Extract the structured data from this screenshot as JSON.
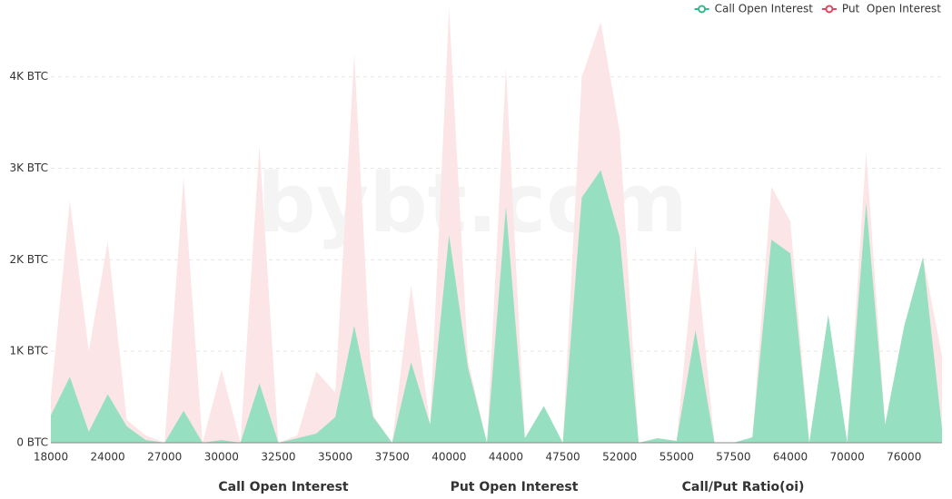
{
  "chart_data": {
    "type": "area",
    "categories": [
      18000,
      null,
      null,
      24000,
      null,
      null,
      27000,
      null,
      null,
      30000,
      null,
      null,
      32500,
      null,
      null,
      35000,
      null,
      null,
      37500,
      null,
      null,
      40000,
      null,
      null,
      44000,
      null,
      null,
      47500,
      null,
      null,
      52000,
      null,
      null,
      55000,
      null,
      null,
      57500,
      null,
      null,
      64000,
      null,
      null,
      70000,
      null,
      null,
      76000,
      null,
      null
    ],
    "series": [
      {
        "name": "Put  Open Interest",
        "color": "#fce5e6",
        "legend_color": "#e2455f",
        "values": [
          500,
          2650,
          1000,
          2200,
          250,
          80,
          0,
          2900,
          0,
          800,
          0,
          3250,
          0,
          80,
          780,
          550,
          4250,
          300,
          0,
          1720,
          200,
          4750,
          900,
          0,
          4100,
          50,
          400,
          0,
          4000,
          4600,
          3400,
          0,
          50,
          20,
          2150,
          0,
          0,
          60,
          2800,
          2420,
          0,
          1400,
          0,
          3180,
          200,
          1270,
          2030,
          950
        ]
      },
      {
        "name": "Call Open Interest",
        "color": "#96dfc0",
        "legend_color": "#35b98a",
        "values": [
          300,
          720,
          120,
          530,
          180,
          30,
          0,
          350,
          0,
          30,
          0,
          650,
          0,
          50,
          100,
          280,
          1280,
          280,
          0,
          880,
          200,
          2270,
          820,
          0,
          2580,
          50,
          400,
          0,
          2680,
          2980,
          2250,
          0,
          50,
          20,
          1230,
          0,
          0,
          60,
          2220,
          2070,
          0,
          1400,
          0,
          2620,
          200,
          1270,
          2030,
          150
        ]
      }
    ],
    "legend_order": [
      1,
      0
    ],
    "ylim": [
      0,
      4800
    ],
    "yticks": [
      {
        "value": 0,
        "label": "0 BTC"
      },
      {
        "value": 1000,
        "label": "1K BTC"
      },
      {
        "value": 2000,
        "label": "2K BTC"
      },
      {
        "value": 3000,
        "label": "3K BTC"
      },
      {
        "value": 4000,
        "label": "4K BTC"
      }
    ],
    "grid": true,
    "legend": "top-right",
    "watermark": "bybt.com"
  },
  "footer": [
    "Call Open Interest",
    "Put Open Interest",
    "Call/Put Ratio(oi)"
  ]
}
